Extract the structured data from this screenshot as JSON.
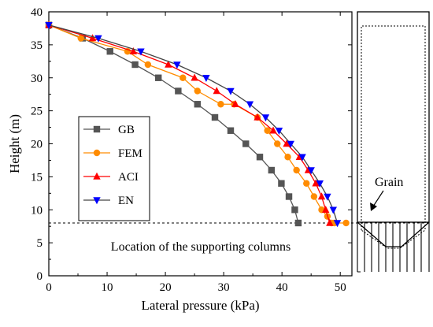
{
  "chart_data": {
    "type": "line",
    "xlabel": "Lateral pressure (kPa)",
    "ylabel": "Height (m)",
    "xlim": [
      0,
      52
    ],
    "ylim": [
      0,
      40
    ],
    "xticks": [
      0,
      10,
      20,
      30,
      40,
      50
    ],
    "yticks": [
      0,
      5,
      10,
      15,
      20,
      25,
      30,
      35,
      40
    ],
    "legend_position": "left-middle",
    "series": [
      {
        "name": "GB",
        "color": "#555555",
        "marker": "square",
        "x": [
          0,
          5.8,
          10.5,
          14.8,
          18.8,
          22.2,
          25.5,
          28.5,
          31.2,
          33.8,
          36.2,
          38.2,
          39.9,
          41.2,
          42.2,
          42.8
        ],
        "y": [
          38,
          36,
          34,
          32,
          30,
          28,
          26,
          24,
          22,
          20,
          18,
          16,
          14,
          12,
          10,
          8
        ]
      },
      {
        "name": "FEM",
        "color": "#ff8c00",
        "marker": "circle",
        "x": [
          0,
          5.5,
          13.5,
          17.0,
          23.0,
          25.5,
          29.5,
          31.8,
          35.8,
          37.5,
          39.2,
          41.0,
          42.5,
          44.2,
          45.5,
          46.8,
          47.8,
          48.5,
          49.0,
          51.0
        ],
        "y": [
          38,
          36,
          34,
          32,
          30,
          28,
          26,
          26,
          24,
          22,
          20,
          18,
          16,
          14,
          12,
          10,
          9,
          8,
          8,
          8
        ],
        "x_raw_note": ""
      },
      {
        "name": "ACI",
        "color": "#ff0000",
        "marker": "triangle-up",
        "x": [
          0,
          7.5,
          14.5,
          20.5,
          25.0,
          28.8,
          32.0,
          35.8,
          38.5,
          40.8,
          43.0,
          44.5,
          45.8,
          46.8,
          47.5,
          48.2
        ],
        "y": [
          38,
          36,
          34,
          32,
          30,
          28,
          26,
          24,
          22,
          20,
          18,
          16,
          14,
          12,
          10,
          8
        ]
      },
      {
        "name": "EN",
        "color": "#0000ff",
        "marker": "triangle-down",
        "x": [
          0,
          8.5,
          15.8,
          22.0,
          27.0,
          31.2,
          34.5,
          37.2,
          39.5,
          41.5,
          43.5,
          45.0,
          46.5,
          47.8,
          48.8,
          49.5
        ],
        "y": [
          38,
          36,
          34,
          32,
          30,
          28,
          26,
          24,
          22,
          20,
          18,
          16,
          14,
          12,
          10,
          8
        ]
      }
    ],
    "reference_line": {
      "y": 8,
      "style": "dashed"
    },
    "annotation": "Location of the supporting columns",
    "inset": {
      "label": "Grain"
    }
  }
}
